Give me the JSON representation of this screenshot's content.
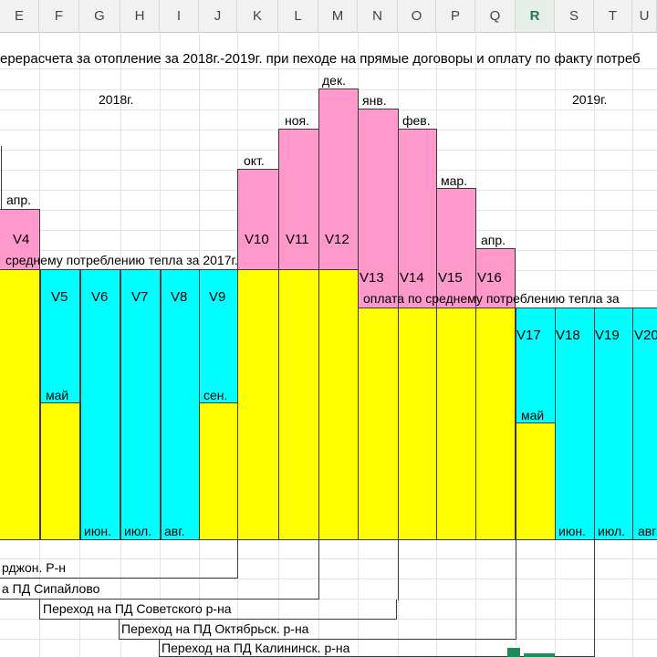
{
  "columns": [
    "E",
    "F",
    "G",
    "H",
    "I",
    "J",
    "K",
    "L",
    "M",
    "N",
    "O",
    "P",
    "Q",
    "R",
    "S",
    "T",
    "U"
  ],
  "selected_column": "R",
  "title": "ерерасчета за отопление за 2018г.-2019г. при пеходе на прямые договоры и оплату по факту потреб",
  "year_2018": "2018г.",
  "year_2019": "2019г.",
  "months": {
    "apr1": "апр.",
    "may1": "май",
    "jun1": "июн.",
    "jul1": "июл.",
    "aug1": "авг.",
    "sep1": "сен.",
    "oct": "окт.",
    "nov": "ноя.",
    "dec": "дек.",
    "jan": "янв.",
    "feb": "фев.",
    "mar": "мар.",
    "apr2": "апр.",
    "may2": "май",
    "jun2": "июн.",
    "jul2": "июл.",
    "aug2": "авг"
  },
  "volumes": {
    "v4": "V4",
    "v5": "V5",
    "v6": "V6",
    "v7": "V7",
    "v8": "V8",
    "v9": "V9",
    "v10": "V10",
    "v11": "V11",
    "v12": "V12",
    "v13": "V13",
    "v14": "V14",
    "v15": "V15",
    "v16": "V16",
    "v17": "V17",
    "v18": "V18",
    "v19": "V19",
    "v20": "V20"
  },
  "notes": {
    "avg2017": "среднему потреблению тепла за 2017г.",
    "avg_pay": "оплата по среднему потреблению тепла за"
  },
  "transitions": [
    "рджон. Р-н",
    "а ПД Сипайлово",
    "Переход на ПД Советского р-на",
    "Переход на ПД Октябрьск. р-на",
    "Переход на ПД Калининск. р-на"
  ],
  "colors": {
    "pink": "#ff99cc",
    "cyan": "#00ffff",
    "yellow": "#ffff00",
    "header_bg": "#f1f1f1",
    "selection": "#1f8a5a"
  }
}
